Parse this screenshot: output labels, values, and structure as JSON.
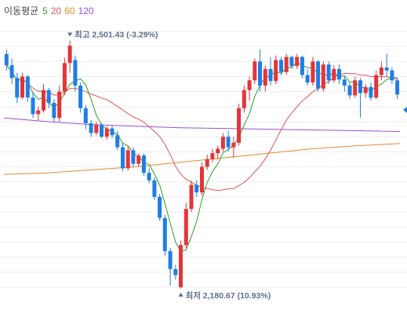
{
  "legend": {
    "label": "이동평균",
    "periods": [
      {
        "text": "5",
        "color": "#2e9e2e"
      },
      {
        "text": "20",
        "color": "#e35656"
      },
      {
        "text": "60",
        "color": "#e58a2e"
      },
      {
        "text": "120",
        "color": "#9a4fd1"
      }
    ]
  },
  "chart_data": {
    "type": "candlestick",
    "ylim": [
      2160,
      2520
    ],
    "grid": true,
    "up_color": "#e3343a",
    "down_color": "#1e7ee6",
    "candles": [
      [
        2490,
        2496,
        2468,
        2475
      ],
      [
        2475,
        2484,
        2450,
        2458
      ],
      [
        2458,
        2465,
        2425,
        2432
      ],
      [
        2432,
        2465,
        2430,
        2460
      ],
      [
        2460,
        2462,
        2426,
        2432
      ],
      [
        2432,
        2438,
        2405,
        2410
      ],
      [
        2410,
        2420,
        2402,
        2415
      ],
      [
        2415,
        2450,
        2412,
        2442
      ],
      [
        2442,
        2445,
        2418,
        2425
      ],
      [
        2425,
        2430,
        2400,
        2405
      ],
      [
        2405,
        2448,
        2400,
        2440
      ],
      [
        2440,
        2485,
        2435,
        2478
      ],
      [
        2478,
        2508,
        2465,
        2501
      ],
      [
        2482,
        2488,
        2440,
        2448
      ],
      [
        2448,
        2452,
        2412,
        2418
      ],
      [
        2418,
        2422,
        2390,
        2398
      ],
      [
        2398,
        2402,
        2380,
        2385
      ],
      [
        2385,
        2400,
        2382,
        2396
      ],
      [
        2396,
        2398,
        2378,
        2380
      ],
      [
        2380,
        2394,
        2376,
        2391
      ],
      [
        2391,
        2395,
        2378,
        2382
      ],
      [
        2382,
        2388,
        2362,
        2366
      ],
      [
        2366,
        2372,
        2334,
        2338
      ],
      [
        2338,
        2368,
        2335,
        2362
      ],
      [
        2362,
        2366,
        2340,
        2344
      ],
      [
        2344,
        2358,
        2340,
        2355
      ],
      [
        2355,
        2358,
        2328,
        2332
      ],
      [
        2332,
        2338,
        2318,
        2322
      ],
      [
        2322,
        2326,
        2296,
        2300
      ],
      [
        2300,
        2304,
        2268,
        2272
      ],
      [
        2272,
        2276,
        2222,
        2228
      ],
      [
        2228,
        2232,
        2182,
        2204
      ],
      [
        2204,
        2210,
        2190,
        2196
      ],
      [
        2180,
        2242,
        2178,
        2236
      ],
      [
        2236,
        2292,
        2232,
        2284
      ],
      [
        2284,
        2322,
        2280,
        2316
      ],
      [
        2316,
        2322,
        2300,
        2306
      ],
      [
        2306,
        2346,
        2302,
        2340
      ],
      [
        2340,
        2356,
        2336,
        2350
      ],
      [
        2350,
        2364,
        2346,
        2358
      ],
      [
        2358,
        2368,
        2350,
        2364
      ],
      [
        2364,
        2385,
        2360,
        2380
      ],
      [
        2380,
        2388,
        2360,
        2366
      ],
      [
        2366,
        2380,
        2352,
        2372
      ],
      [
        2372,
        2424,
        2368,
        2418
      ],
      [
        2418,
        2448,
        2412,
        2442
      ],
      [
        2442,
        2460,
        2428,
        2455
      ],
      [
        2455,
        2484,
        2450,
        2480
      ],
      [
        2480,
        2496,
        2440,
        2448
      ],
      [
        2448,
        2475,
        2440,
        2470
      ],
      [
        2470,
        2486,
        2448,
        2454
      ],
      [
        2454,
        2488,
        2450,
        2482
      ],
      [
        2482,
        2486,
        2462,
        2466
      ],
      [
        2466,
        2490,
        2462,
        2486
      ],
      [
        2486,
        2488,
        2470,
        2474
      ],
      [
        2474,
        2490,
        2470,
        2486
      ],
      [
        2486,
        2488,
        2458,
        2462
      ],
      [
        2462,
        2470,
        2448,
        2452
      ],
      [
        2452,
        2486,
        2448,
        2480
      ],
      [
        2480,
        2482,
        2440,
        2444
      ],
      [
        2444,
        2480,
        2440,
        2476
      ],
      [
        2476,
        2480,
        2450,
        2455
      ],
      [
        2455,
        2475,
        2452,
        2470
      ],
      [
        2470,
        2476,
        2450,
        2456
      ],
      [
        2456,
        2460,
        2440,
        2448
      ],
      [
        2448,
        2452,
        2430,
        2435
      ],
      [
        2435,
        2460,
        2432,
        2455
      ],
      [
        2455,
        2458,
        2405,
        2438
      ],
      [
        2438,
        2450,
        2432,
        2446
      ],
      [
        2446,
        2452,
        2428,
        2432
      ],
      [
        2432,
        2468,
        2430,
        2462
      ],
      [
        2462,
        2480,
        2455,
        2472
      ],
      [
        2472,
        2490,
        2460,
        2468
      ],
      [
        2468,
        2472,
        2450,
        2455
      ],
      [
        2455,
        2458,
        2430,
        2436
      ]
    ],
    "ma60": [
      2330,
      2332,
      2336,
      2340,
      2346,
      2352,
      2358,
      2364,
      2368,
      2371
    ],
    "ma120": [
      2405,
      2400,
      2396,
      2394,
      2392,
      2391,
      2390,
      2389,
      2388,
      2387
    ],
    "annotations": {
      "high": {
        "text": "최고",
        "value": "2,501.43 (-3.29%)"
      },
      "low": {
        "text": "최저",
        "value": "2,180.67 (10.93%)"
      }
    }
  }
}
